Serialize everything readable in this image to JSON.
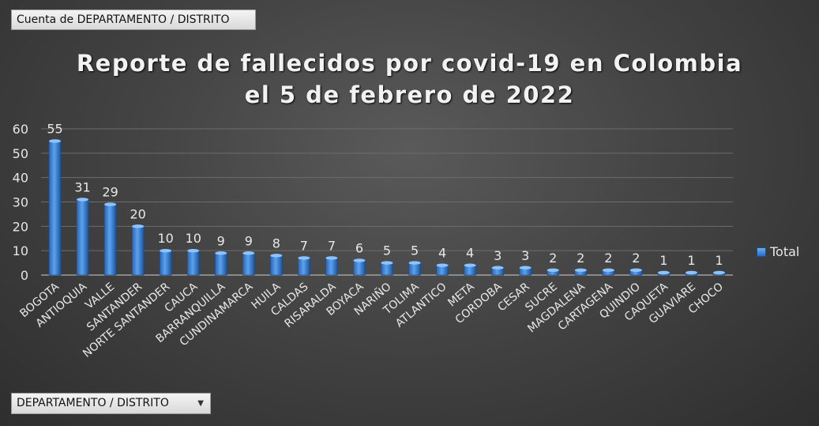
{
  "field_button": {
    "label": "Cuenta de DEPARTAMENTO / DISTRITO"
  },
  "axis_button": {
    "label": "DEPARTAMENTO / DISTRITO",
    "arrow": "▼"
  },
  "chart_data": {
    "type": "bar",
    "title_line1": "Reporte de fallecidos por covid-19 en Colombia",
    "title_line2": "el 5 de febrero de 2022",
    "categories": [
      "BOGOTA",
      "ANTIOQUIA",
      "VALLE",
      "SANTANDER",
      "NORTE SANTANDER",
      "CAUCA",
      "BARRANQUILLA",
      "CUNDINAMARCA",
      "HUILA",
      "CALDAS",
      "RISARALDA",
      "BOYACA",
      "NARIÑO",
      "TOLIMA",
      "ATLANTICO",
      "META",
      "CORDOBA",
      "CESAR",
      "SUCRE",
      "MAGDALENA",
      "CARTAGENA",
      "QUINDIO",
      "CAQUETA",
      "GUAVIARE",
      "CHOCO"
    ],
    "series": [
      {
        "name": "Total",
        "values": [
          55,
          31,
          29,
          20,
          10,
          10,
          9,
          9,
          8,
          7,
          7,
          6,
          5,
          5,
          4,
          4,
          3,
          3,
          2,
          2,
          2,
          2,
          1,
          1,
          1
        ]
      }
    ],
    "ylim": [
      0,
      60
    ],
    "yticks": [
      0,
      10,
      20,
      30,
      40,
      50,
      60
    ],
    "bar_color": "#4a8fe0",
    "legend_position": "right"
  }
}
